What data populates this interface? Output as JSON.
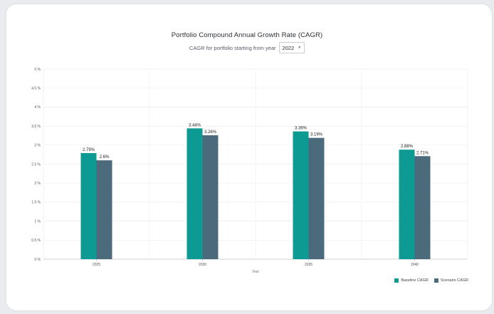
{
  "header": {
    "title": "Portfolio Compound Annual Growth Rate (CAGR)",
    "subtitle_label": "CAGR for portfolio starting from year",
    "year_selected": "2022"
  },
  "legend": {
    "baseline_label": "Baseline CAGR",
    "scenario_label": "Scenario CAGR"
  },
  "chart_data": {
    "type": "bar",
    "title": "Portfolio Compound Annual Growth Rate (CAGR)",
    "xlabel": "Year",
    "ylabel": "",
    "categories": [
      "2025",
      "2030",
      "2035",
      "2040"
    ],
    "series": [
      {
        "name": "Baseline CAGR",
        "values": [
          2.79,
          3.44,
          3.36,
          2.88
        ],
        "labels": [
          "2.79%",
          "3.44%",
          "3.36%",
          "2.88%"
        ],
        "color": "#0d9a92"
      },
      {
        "name": "Scenario CAGR",
        "values": [
          2.6,
          3.26,
          3.19,
          2.71
        ],
        "labels": [
          "2.6%",
          "3.26%",
          "3.19%",
          "2.71%"
        ],
        "color": "#4b6b7d"
      }
    ],
    "ylim": [
      0,
      5
    ],
    "yticks": [
      "0 %",
      "0.5 %",
      "1 %",
      "1.5 %",
      "2 %",
      "2.5 %",
      "3 %",
      "3.5 %",
      "4 %",
      "4.5 %",
      "5 %"
    ],
    "ytick_values": [
      0,
      0.5,
      1,
      1.5,
      2,
      2.5,
      3,
      3.5,
      4,
      4.5,
      5
    ],
    "grid": true,
    "legend_position": "bottom-right"
  }
}
